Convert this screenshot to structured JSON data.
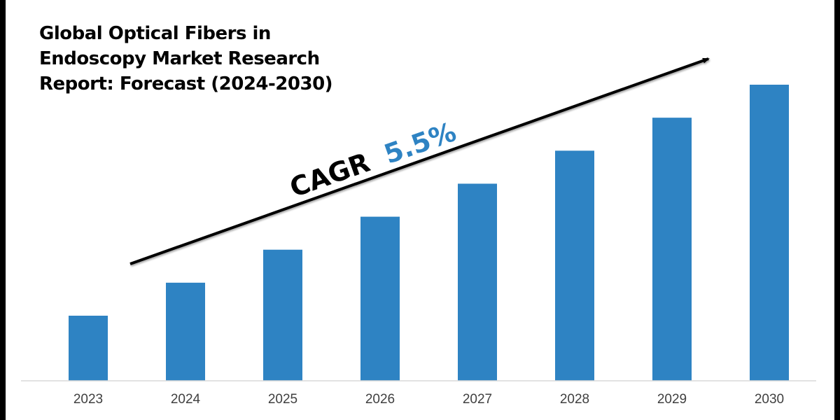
{
  "chart_data": {
    "type": "bar",
    "title": "Global Optical Fibers in\nEndoscopy Market Research\nReport: Forecast (2024-2030)",
    "categories": [
      "2023",
      "2024",
      "2025",
      "2026",
      "2027",
      "2028",
      "2029",
      "2030"
    ],
    "values": [
      1.0,
      1.5,
      2.0,
      2.5,
      3.0,
      3.5,
      4.0,
      4.5
    ],
    "value_units": "relative (no axis values shown)",
    "xlabel": "",
    "ylabel": "",
    "ylim": [
      0,
      4.5
    ],
    "grid": false,
    "legend": "none",
    "bar_color": "#2e83c3",
    "annotation": {
      "prefix": "CAGR",
      "value": "5.5%",
      "prefix_color": "#000000",
      "value_color": "#2e83c3",
      "arrow": "upward trend arrow"
    }
  }
}
